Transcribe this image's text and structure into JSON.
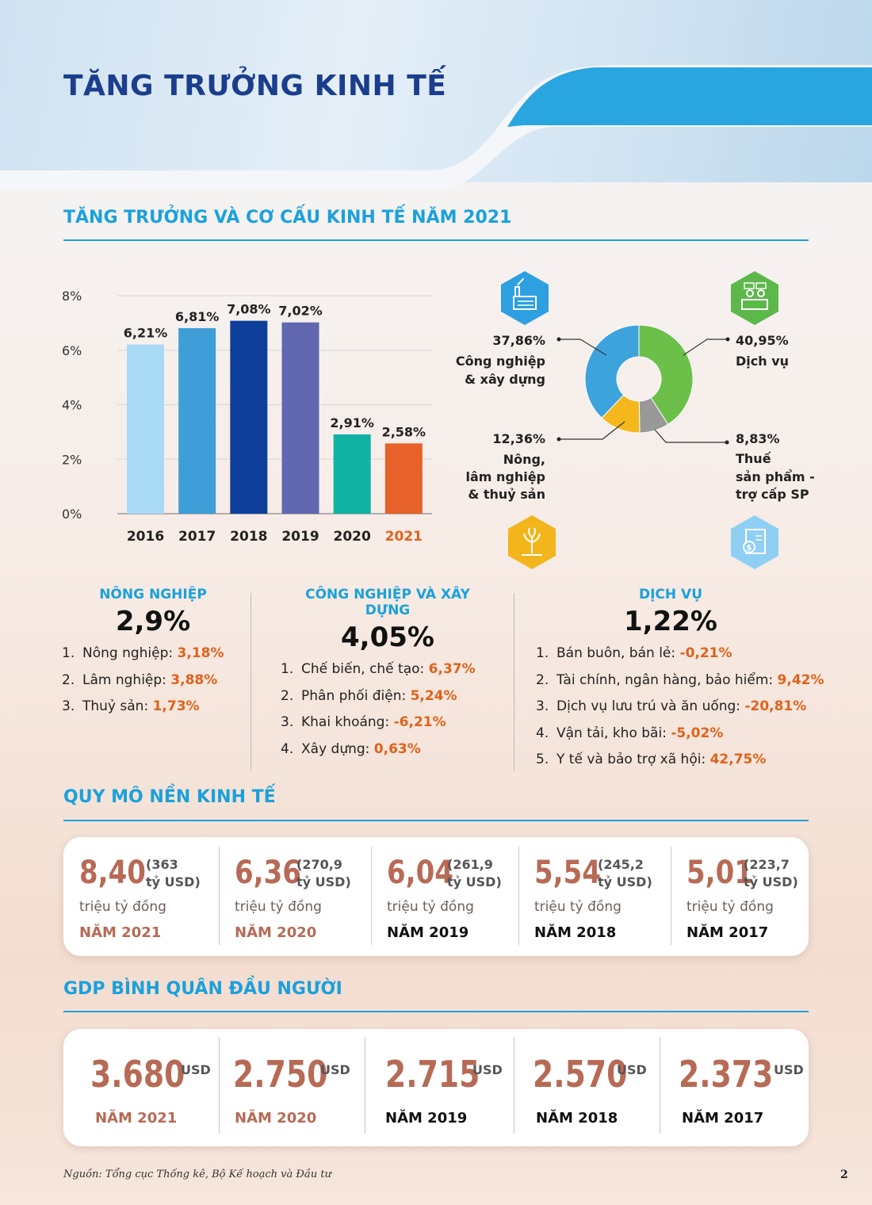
{
  "title": "TĂNG TRƯỞNG KINH TẾ",
  "section1": {
    "title": "TĂNG TRƯỞNG VÀ CƠ CẤU KINH TẾ NĂM 2021"
  },
  "colors": {
    "accent": "#1aa1dc",
    "highlight": "#e0621b",
    "navy": "#1b3e8c",
    "stat": "#b76a55"
  },
  "chart_data": [
    {
      "type": "bar",
      "categories": [
        "2016",
        "2017",
        "2018",
        "2019",
        "2020",
        "2021"
      ],
      "values": [
        6.21,
        6.81,
        7.08,
        7.02,
        2.91,
        2.58
      ],
      "value_labels": [
        "6,21%",
        "6,81%",
        "7,08%",
        "7,02%",
        "2,91%",
        "2,58%"
      ],
      "bar_colors": [
        "#a8daf5",
        "#3f9ed7",
        "#0d3f9a",
        "#6167b0",
        "#10b3a3",
        "#e6622a"
      ],
      "y_ticks": [
        0,
        2,
        4,
        6,
        8
      ],
      "y_tick_labels": [
        "0%",
        "2%",
        "4%",
        "6%",
        "8%"
      ],
      "ylim": [
        0,
        8
      ],
      "grid": true,
      "highlight_category": "2021"
    },
    {
      "type": "pie",
      "hole": true,
      "slices": [
        {
          "value": 40.95,
          "pct": "40,95%",
          "label": "Dịch vụ",
          "color": "#6cc04a",
          "icon": "service-counter-icon"
        },
        {
          "value": 8.83,
          "pct": "8,83%",
          "label": "Thuế sản phẩm - trợ cấp SP",
          "color": "#999999",
          "icon": "tax-money-icon"
        },
        {
          "value": 12.36,
          "pct": "12,36%",
          "label": "Nông, lâm nghiệp & thuỷ sản",
          "color": "#f4b81c",
          "icon": "agriculture-icon"
        },
        {
          "value": 37.86,
          "pct": "37,86%",
          "label": "Công nghiệp & xây dựng",
          "color": "#3da3dd",
          "icon": "factory-icon"
        }
      ]
    }
  ],
  "donut_labels": {
    "industry": {
      "pct": "37,86%",
      "l1": "Công nghiệp",
      "l2": "& xây dựng"
    },
    "service": {
      "pct": "40,95%",
      "l1": "Dịch vụ"
    },
    "agri": {
      "pct": "12,36%",
      "l1": "Nông,",
      "l2": "lâm nghiệp",
      "l3": "& thuỷ sản"
    },
    "tax": {
      "pct": "8,83%",
      "l1": "Thuế",
      "l2": "sản phẩm -",
      "l3": "trợ cấp SP"
    }
  },
  "sectors": [
    {
      "name": "NÔNG NGHIỆP",
      "value": "2,9%",
      "items": [
        {
          "n": "1.",
          "label": "Nông nghiệp: ",
          "value": "3,18%"
        },
        {
          "n": "2.",
          "label": "Lâm nghiệp: ",
          "value": "3,88%"
        },
        {
          "n": "3.",
          "label": "Thuỷ sản: ",
          "value": "1,73%"
        }
      ]
    },
    {
      "name": "CÔNG NGHIỆP VÀ XÂY DỰNG",
      "value": "4,05%",
      "items": [
        {
          "n": "1.",
          "label": "Chế biến, chế tạo: ",
          "value": "6,37%"
        },
        {
          "n": "2.",
          "label": "Phân phối điện: ",
          "value": "5,24%"
        },
        {
          "n": "3.",
          "label": "Khai khoáng: ",
          "value": "-6,21%"
        },
        {
          "n": "4.",
          "label": "Xây dựng: ",
          "value": "0,63%"
        }
      ]
    },
    {
      "name": "DỊCH VỤ",
      "value": "1,22%",
      "items": [
        {
          "n": "1.",
          "label": "Bán buôn, bán lẻ: ",
          "value": "-0,21%"
        },
        {
          "n": "2.",
          "label": "Tài chính, ngân hàng, bảo hiểm: ",
          "value": "9,42%"
        },
        {
          "n": "3.",
          "label": "Dịch vụ lưu trú và ăn uống: ",
          "value": "-20,81%"
        },
        {
          "n": "4.",
          "label": "Vận tải, kho bãi: ",
          "value": "-5,02%"
        },
        {
          "n": "5.",
          "label": "Y tế và bảo trợ xã hội: ",
          "value": "42,75%"
        }
      ]
    }
  ],
  "scale": {
    "title": "QUY MÔ NỀN KINH TẾ",
    "items": [
      {
        "value": "8,40",
        "usd1": "(363",
        "usd2": "tỷ USD)",
        "unit": "triệu tỷ đồng",
        "year": "NĂM 2021"
      },
      {
        "value": "6,36",
        "usd1": "(270,9",
        "usd2": "tỷ USD)",
        "unit": "triệu tỷ đồng",
        "year": "NĂM 2020"
      },
      {
        "value": "6,04",
        "usd1": "(261,9",
        "usd2": "tỷ USD)",
        "unit": "triệu tỷ đồng",
        "year": "NĂM 2019"
      },
      {
        "value": "5,54",
        "usd1": "(245,2",
        "usd2": "tỷ USD)",
        "unit": "triệu tỷ đồng",
        "year": "NĂM 2018"
      },
      {
        "value": "5,01",
        "usd1": "(223,7",
        "usd2": "tỷ USD)",
        "unit": "triệu tỷ đồng",
        "year": "NĂM 2017"
      }
    ]
  },
  "gdp": {
    "title": "GDP BÌNH QUÂN ĐẦU NGƯỜI",
    "items": [
      {
        "value": "3.680",
        "unit": "USD",
        "year": "NĂM 2021"
      },
      {
        "value": "2.750",
        "unit": "USD",
        "year": "NĂM 2020"
      },
      {
        "value": "2.715",
        "unit": "USD",
        "year": "NĂM 2019"
      },
      {
        "value": "2.570",
        "unit": "USD",
        "year": "NĂM 2018"
      },
      {
        "value": "2.373",
        "unit": "USD",
        "year": "NĂM 2017"
      }
    ]
  },
  "footer": {
    "source": "Nguồn: Tổng cục Thống kê, Bộ Kế hoạch và Đầu tư",
    "page": "2"
  }
}
